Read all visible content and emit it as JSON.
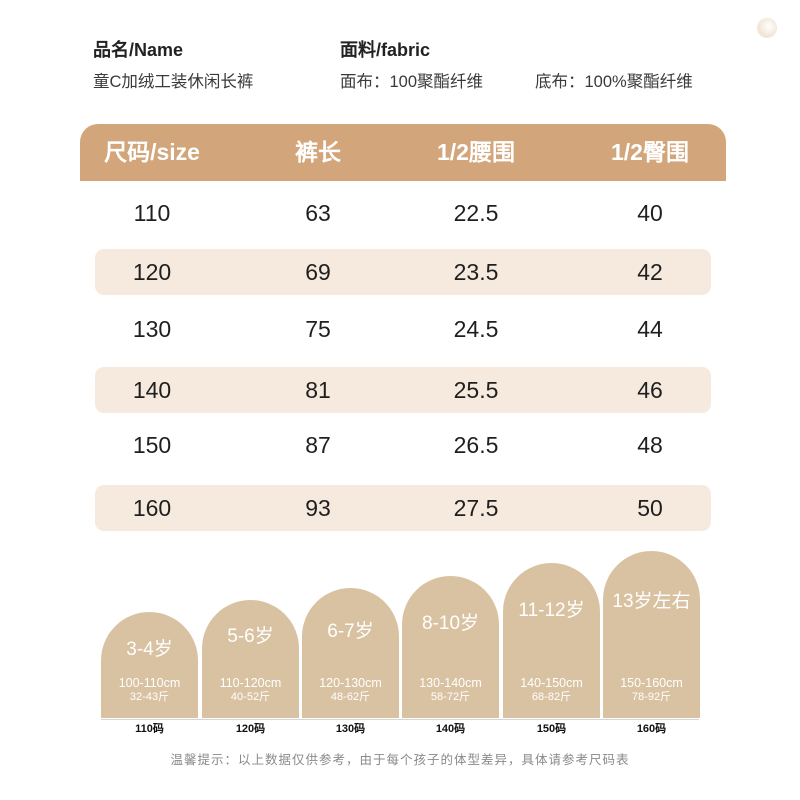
{
  "product": {
    "label": "品名/Name",
    "value": "童C加绒工装休闲长裤"
  },
  "fabric": {
    "label": "面料/fabric",
    "face": "面布：100聚酯纤维",
    "base": "底布：100%聚酯纤维"
  },
  "table": {
    "headers": [
      "尺码/size",
      "裤长",
      "1/2腰围",
      "1/2臀围"
    ],
    "rows": [
      [
        "110",
        "63",
        "22.5",
        "40"
      ],
      [
        "120",
        "69",
        "23.5",
        "42"
      ],
      [
        "130",
        "75",
        "24.5",
        "44"
      ],
      [
        "140",
        "81",
        "25.5",
        "46"
      ],
      [
        "150",
        "87",
        "26.5",
        "48"
      ],
      [
        "160",
        "93",
        "27.5",
        "50"
      ]
    ]
  },
  "age_guide": [
    {
      "age": "3-4岁",
      "height": "100-110cm",
      "weight": "32-43斤",
      "size": "110码"
    },
    {
      "age": "5-6岁",
      "height": "110-120cm",
      "weight": "40-52斤",
      "size": "120码"
    },
    {
      "age": "6-7岁",
      "height": "120-130cm",
      "weight": "48-62斤",
      "size": "130码"
    },
    {
      "age": "8-10岁",
      "height": "130-140cm",
      "weight": "58-72斤",
      "size": "140码"
    },
    {
      "age": "11-12岁",
      "height": "140-150cm",
      "weight": "68-82斤",
      "size": "150码"
    },
    {
      "age": "13岁左右",
      "height": "150-160cm",
      "weight": "78-92斤",
      "size": "160码"
    }
  ],
  "note": "温馨提示：以上数据仅供参考，由于每个孩子的体型差异，具体请参考尺码表",
  "colors": {
    "header": "#D2A67A",
    "row_highlight": "#F6EADE",
    "arch": "#D9C2A2",
    "text": "#222222"
  }
}
